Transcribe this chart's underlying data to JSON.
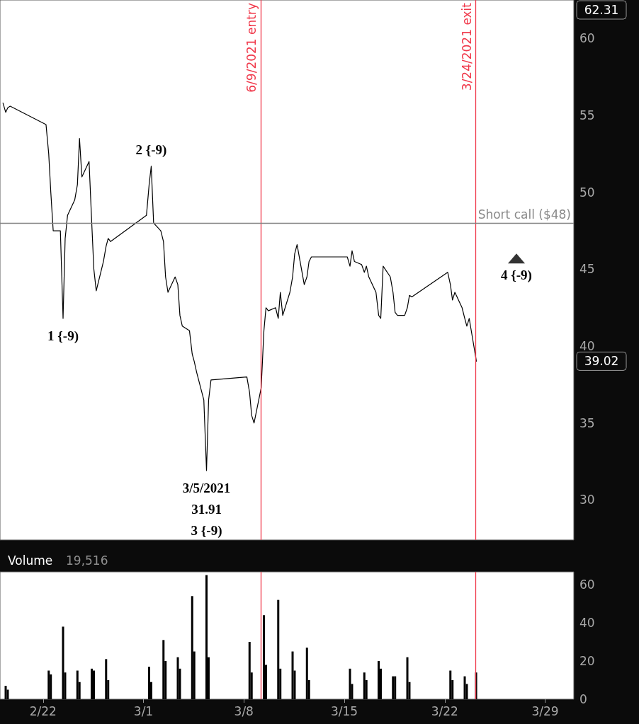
{
  "chart_data": [
    {
      "type": "line",
      "tick_labels": "y",
      "marker": "none",
      "line_style": "solid",
      "xlim": [
        "2021-02-19T00:00",
        "2021-03-31T00:00"
      ],
      "ylim": [
        27.4,
        62.5
      ],
      "yticks": [
        30,
        35,
        40,
        45,
        50,
        55,
        60
      ],
      "series": [
        {
          "color": "#000000",
          "x": [
            "2021-02-19T05:00",
            "2021-02-19T09:30",
            "2021-02-19T13:00",
            "2021-02-19T17:00",
            "2021-02-22T05:00",
            "2021-02-22T09:30",
            "2021-02-22T13:00",
            "2021-02-22T17:00",
            "2021-02-23T05:00",
            "2021-02-23T09:30",
            "2021-02-23T13:00",
            "2021-02-23T17:00",
            "2021-02-24T05:00",
            "2021-02-24T09:30",
            "2021-02-24T13:00",
            "2021-02-24T17:00",
            "2021-02-25T05:00",
            "2021-02-25T09:30",
            "2021-02-25T13:00",
            "2021-02-25T17:00",
            "2021-02-26T05:00",
            "2021-02-26T09:30",
            "2021-02-26T13:00",
            "2021-02-26T17:00",
            "2021-03-01T05:00",
            "2021-03-01T09:30",
            "2021-03-01T13:00",
            "2021-03-01T17:00",
            "2021-03-02T05:00",
            "2021-03-02T09:30",
            "2021-03-02T13:00",
            "2021-03-02T17:00",
            "2021-03-03T05:00",
            "2021-03-03T09:30",
            "2021-03-03T13:00",
            "2021-03-03T17:00",
            "2021-03-04T05:00",
            "2021-03-04T09:30",
            "2021-03-04T13:00",
            "2021-03-04T17:00",
            "2021-03-05T05:00",
            "2021-03-05T09:30",
            "2021-03-05T13:00",
            "2021-03-05T17:00",
            "2021-03-08T05:00",
            "2021-03-08T09:30",
            "2021-03-08T13:00",
            "2021-03-08T17:00",
            "2021-03-09T05:00",
            "2021-03-09T09:30",
            "2021-03-09T13:00",
            "2021-03-09T17:00",
            "2021-03-10T05:00",
            "2021-03-10T09:30",
            "2021-03-10T13:00",
            "2021-03-10T17:00",
            "2021-03-11T05:00",
            "2021-03-11T09:30",
            "2021-03-11T13:00",
            "2021-03-11T17:00",
            "2021-03-12T05:00",
            "2021-03-12T09:30",
            "2021-03-12T13:00",
            "2021-03-12T17:00",
            "2021-03-15T05:00",
            "2021-03-15T09:30",
            "2021-03-15T13:00",
            "2021-03-15T17:00",
            "2021-03-16T05:00",
            "2021-03-16T09:30",
            "2021-03-16T13:00",
            "2021-03-16T17:00",
            "2021-03-17T05:00",
            "2021-03-17T09:30",
            "2021-03-17T13:00",
            "2021-03-17T17:00",
            "2021-03-18T05:00",
            "2021-03-18T09:30",
            "2021-03-18T13:00",
            "2021-03-18T17:00",
            "2021-03-19T05:00",
            "2021-03-19T09:30",
            "2021-03-19T13:00",
            "2021-03-19T17:00",
            "2021-03-22T05:00",
            "2021-03-22T09:30",
            "2021-03-22T13:00",
            "2021-03-22T17:00",
            "2021-03-23T05:00",
            "2021-03-23T09:30",
            "2021-03-23T13:00",
            "2021-03-23T17:00",
            "2021-03-24T05:00"
          ],
          "values": [
            55.8,
            55.2,
            55.5,
            55.6,
            54.4,
            52.5,
            50.0,
            47.5,
            47.5,
            41.8,
            47.0,
            48.5,
            49.5,
            50.5,
            53.5,
            51.0,
            52.0,
            48.0,
            45.0,
            43.6,
            45.5,
            46.5,
            47.0,
            46.8,
            48.5,
            50.5,
            51.7,
            48.0,
            47.5,
            46.8,
            44.5,
            43.5,
            44.5,
            44.0,
            42.0,
            41.3,
            41.0,
            39.5,
            39.0,
            38.3,
            36.5,
            31.91,
            36.5,
            37.8,
            38.0,
            37.0,
            35.5,
            35.0,
            37.3,
            41.0,
            42.5,
            42.3,
            42.5,
            41.8,
            43.5,
            42.0,
            43.5,
            44.5,
            46.0,
            46.6,
            44.0,
            44.5,
            45.5,
            45.8,
            45.8,
            45.2,
            46.2,
            45.5,
            45.3,
            44.8,
            45.2,
            44.5,
            43.5,
            42.0,
            41.8,
            45.2,
            44.5,
            43.5,
            42.2,
            42.0,
            42.0,
            42.5,
            43.3,
            43.2,
            44.8,
            44.0,
            43.0,
            43.5,
            42.5,
            41.8,
            41.3,
            41.8,
            39.02
          ]
        },
        {
          "type": "scatter",
          "marker": "triangle",
          "color": "#000000",
          "x": [
            "2021-03-27T00:00"
          ],
          "values": [
            45.7
          ]
        }
      ],
      "ref_lines": [
        {
          "axis": "x",
          "value": "2021-03-09T04:00",
          "label": "6/9/2021 entry",
          "color": "#f0384a"
        },
        {
          "axis": "x",
          "value": "2021-03-24T04:00",
          "label": "3/24/2021 exit",
          "color": "#f0384a"
        },
        {
          "axis": "y",
          "value": 48,
          "label": "Short call ($48)",
          "color": "#808080"
        }
      ],
      "annotations": [
        {
          "text": "1 {-9)",
          "x": "2021-02-23T09:30",
          "y": 41.8
        },
        {
          "text": "2 {-9)",
          "x": "2021-03-01T13:00",
          "y": 51.7
        },
        {
          "text": "3/5/2021\n31.91\n3 {-9)",
          "x": "2021-03-05T09:30",
          "y": 31.91
        },
        "4 {-9)",
        "62.31",
        "39.02"
      ]
    },
    {
      "type": "bar",
      "title": "Volume",
      "subtitle": "19,516",
      "color": "#000000",
      "xlim": [
        "2021-02-19T00:00",
        "2021-03-31T00:00"
      ],
      "xticks": [
        {
          "value": "2021-02-22T00:00",
          "label": "2/22"
        },
        {
          "value": "2021-03-01T00:00",
          "label": "3/1"
        },
        {
          "value": "2021-03-08T00:00",
          "label": "3/8"
        },
        {
          "value": "2021-03-15T00:00",
          "label": "3/15"
        },
        {
          "value": "2021-03-22T00:00",
          "label": "3/22"
        },
        {
          "value": "2021-03-29T00:00",
          "label": "3/29"
        }
      ],
      "ylim": [
        0,
        66.7
      ],
      "yticks": [
        0,
        20,
        40,
        60
      ],
      "x": [
        "2021-02-19T09:30",
        "2021-02-19T13:00",
        "2021-02-22T09:30",
        "2021-02-22T13:00",
        "2021-02-23T09:30",
        "2021-02-23T13:00",
        "2021-02-24T09:30",
        "2021-02-24T13:00",
        "2021-02-25T09:30",
        "2021-02-25T13:00",
        "2021-02-26T09:30",
        "2021-02-26T13:00",
        "2021-03-01T09:30",
        "2021-03-01T13:00",
        "2021-03-02T09:30",
        "2021-03-02T13:00",
        "2021-03-03T09:30",
        "2021-03-03T13:00",
        "2021-03-04T09:30",
        "2021-03-04T13:00",
        "2021-03-05T09:30",
        "2021-03-05T13:00",
        "2021-03-08T09:30",
        "2021-03-08T13:00",
        "2021-03-09T09:30",
        "2021-03-09T13:00",
        "2021-03-10T09:30",
        "2021-03-10T13:00",
        "2021-03-11T09:30",
        "2021-03-11T13:00",
        "2021-03-12T09:30",
        "2021-03-12T13:00",
        "2021-03-15T09:30",
        "2021-03-15T13:00",
        "2021-03-16T09:30",
        "2021-03-16T13:00",
        "2021-03-17T09:30",
        "2021-03-17T13:00",
        "2021-03-18T09:30",
        "2021-03-18T13:00",
        "2021-03-19T09:30",
        "2021-03-19T13:00",
        "2021-03-22T09:30",
        "2021-03-22T13:00",
        "2021-03-23T09:30",
        "2021-03-23T13:00",
        "2021-03-24T04:30"
      ],
      "values": [
        7,
        5,
        15,
        13,
        38,
        14,
        15,
        9,
        16,
        15,
        21,
        10,
        17,
        9,
        31,
        20,
        22,
        16,
        54,
        25,
        65,
        22,
        30,
        14,
        44,
        18,
        52,
        16,
        25,
        15,
        27,
        10,
        16,
        8,
        14,
        10,
        20,
        16,
        12,
        12,
        22,
        9,
        15,
        10,
        12,
        8,
        14
      ],
      "ref_lines": [
        {
          "axis": "x",
          "value": "2021-03-09T04:00",
          "color": "#f0384a"
        },
        {
          "axis": "x",
          "value": "2021-03-24T04:00",
          "color": "#f0384a"
        }
      ]
    }
  ]
}
